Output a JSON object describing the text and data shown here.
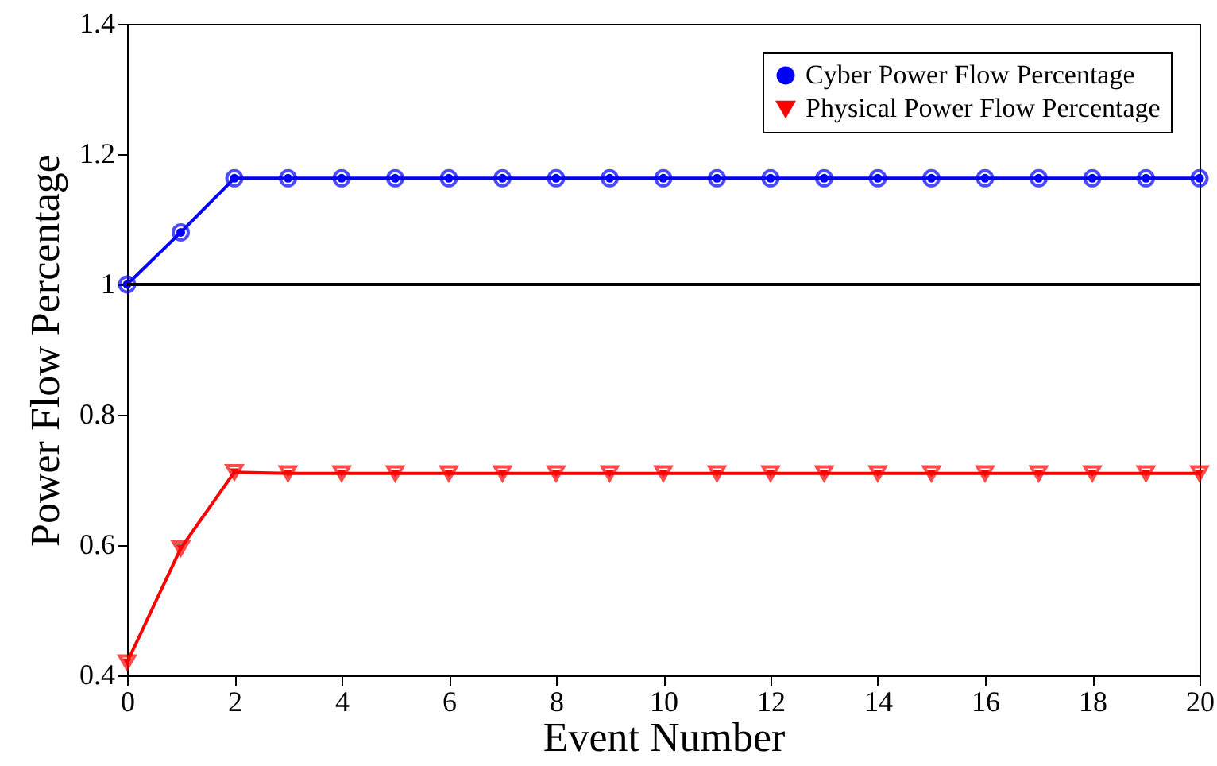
{
  "chart_data": {
    "type": "line",
    "xlabel": "Event Number",
    "ylabel": "Power Flow Percentage",
    "x": [
      0,
      1,
      2,
      3,
      4,
      5,
      6,
      7,
      8,
      9,
      10,
      11,
      12,
      13,
      14,
      15,
      16,
      17,
      18,
      19,
      20
    ],
    "series": [
      {
        "name": "Cyber Power Flow Percentage",
        "color": "#0000ff",
        "marker": "circle",
        "values": [
          1.0,
          1.08,
          1.163,
          1.163,
          1.163,
          1.163,
          1.163,
          1.163,
          1.163,
          1.163,
          1.163,
          1.163,
          1.163,
          1.163,
          1.163,
          1.163,
          1.163,
          1.163,
          1.163,
          1.163,
          1.163
        ]
      },
      {
        "name": "Physical Power Flow Percentage",
        "color": "#ff0000",
        "marker": "triangle",
        "values": [
          0.42,
          0.595,
          0.712,
          0.71,
          0.71,
          0.71,
          0.71,
          0.71,
          0.71,
          0.71,
          0.71,
          0.71,
          0.71,
          0.71,
          0.71,
          0.71,
          0.71,
          0.71,
          0.71,
          0.71,
          0.71
        ]
      }
    ],
    "xlim": [
      0,
      20
    ],
    "xticks": [
      0,
      2,
      4,
      6,
      8,
      10,
      12,
      14,
      16,
      18,
      20
    ],
    "ylim": [
      0.4,
      1.4
    ],
    "yticks": [
      0.4,
      0.6,
      0.8,
      1,
      1.2,
      1.4
    ],
    "ref_lines": [
      {
        "axis": "y",
        "value": 1,
        "color": "#000000"
      }
    ],
    "legend": "top right",
    "grid": false,
    "line_style": "solid"
  }
}
